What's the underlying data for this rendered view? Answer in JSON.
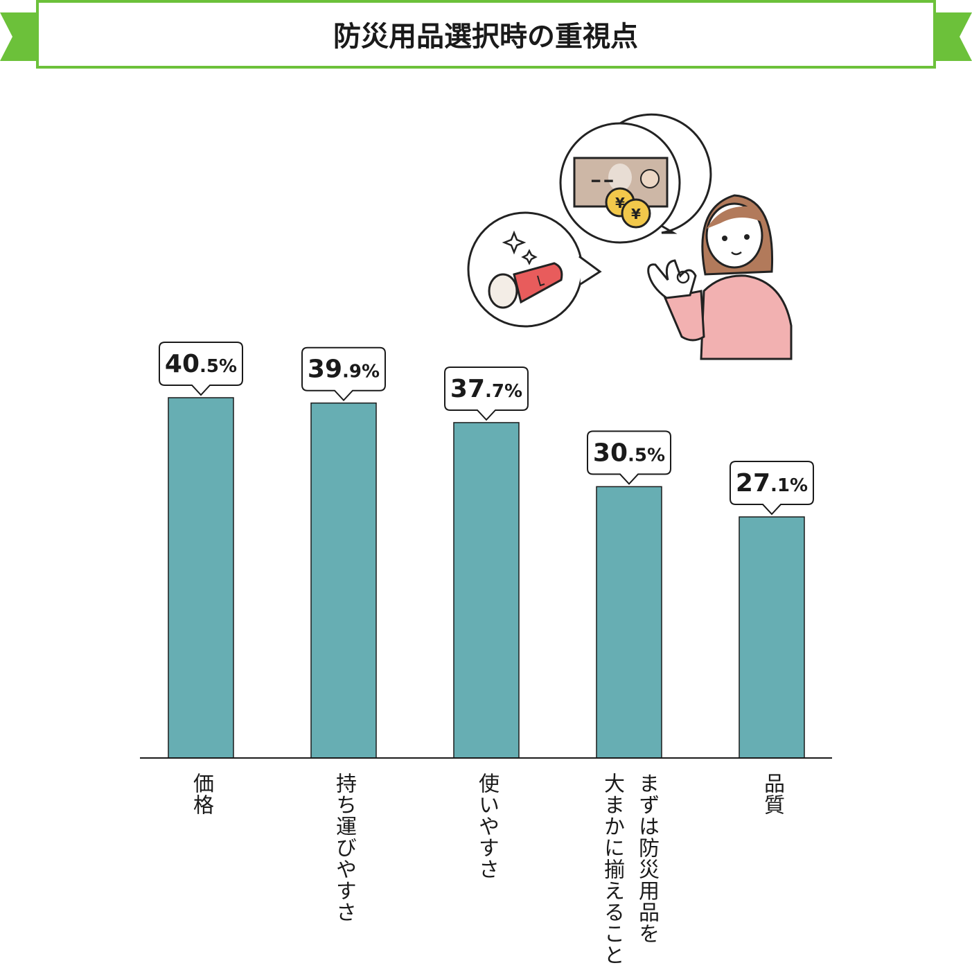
{
  "title": "防災用品選択時の重視点",
  "colors": {
    "banner_green": "#6cc13a",
    "bar": "#67aeb3",
    "bill": "#cdb7a6",
    "coin": "#f2c84b",
    "flashlight": "#e85c5c",
    "hair": "#b27a5b",
    "sweater": "#f2b1b1"
  },
  "chart_data": {
    "type": "bar",
    "title": "防災用品選択時の重視点",
    "categories": [
      "価格",
      "持ち運びやすさ",
      "使いやすさ",
      "まずは防災用品を\n大まかに揃えること",
      "品質"
    ],
    "values": [
      40.5,
      39.9,
      37.7,
      30.5,
      27.1
    ],
    "value_labels": [
      {
        "int": "40",
        "dec": ".5%"
      },
      {
        "int": "39",
        "dec": ".9%"
      },
      {
        "int": "37",
        "dec": ".7%"
      },
      {
        "int": "30",
        "dec": ".5%"
      },
      {
        "int": "27",
        "dec": ".1%"
      }
    ],
    "unit": "%",
    "ylim": [
      0,
      40.5
    ],
    "grid": false,
    "legend": "none"
  },
  "illustration": {
    "bill_label": "━ ━",
    "coin_symbol": "¥",
    "icons": [
      "money-icon",
      "flashlight-icon",
      "sparkle-icon",
      "woman-ok-gesture-icon"
    ]
  }
}
